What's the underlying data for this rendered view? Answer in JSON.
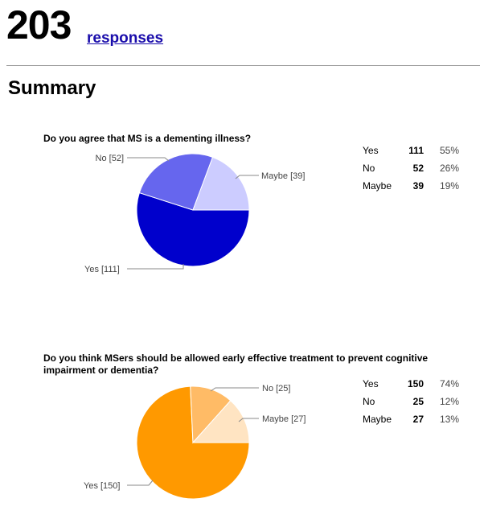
{
  "header": {
    "count": "203",
    "link_label": "responses"
  },
  "summary_title": "Summary",
  "questions": [
    {
      "title": "Do you agree that MS is a dementing illness?",
      "rows": [
        {
          "label": "Yes",
          "count": "111",
          "percent": "55%"
        },
        {
          "label": "No",
          "count": "52",
          "percent": "26%"
        },
        {
          "label": "Maybe",
          "count": "39",
          "percent": "19%"
        }
      ]
    },
    {
      "title": "Do you think MSers should be allowed early effective treatment to prevent cognitive impairment or dementia?",
      "rows": [
        {
          "label": "Yes",
          "count": "150",
          "percent": "74%"
        },
        {
          "label": "No",
          "count": "25",
          "percent": "12%"
        },
        {
          "label": "Maybe",
          "count": "27",
          "percent": "13%"
        }
      ]
    }
  ],
  "chart_data": [
    {
      "type": "pie",
      "title": "Do you agree that MS is a dementing illness?",
      "categories": [
        "Yes",
        "No",
        "Maybe"
      ],
      "values": [
        111,
        52,
        39
      ],
      "labels": [
        "Yes [111]",
        "No [52]",
        "Maybe [39]"
      ],
      "colors": [
        "#0000cc",
        "#6666ee",
        "#ccccff"
      ]
    },
    {
      "type": "pie",
      "title": "Do you think MSers should be allowed early effective treatment to prevent cognitive impairment or dementia?",
      "categories": [
        "Yes",
        "No",
        "Maybe"
      ],
      "values": [
        150,
        25,
        27
      ],
      "labels": [
        "Yes [150]",
        "No [25]",
        "Maybe [27]"
      ],
      "colors": [
        "#ff9900",
        "#ffbb66",
        "#ffe4c2"
      ]
    }
  ]
}
